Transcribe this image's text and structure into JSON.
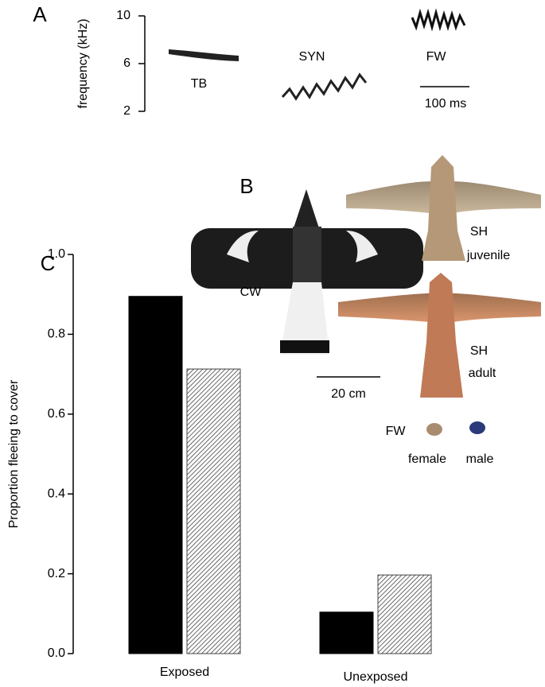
{
  "chart_data": {
    "type": "bar",
    "panel": "C",
    "ylabel": "Proportion fleeing to cover",
    "categories": [
      "Exposed",
      "Unexposed"
    ],
    "series": [
      {
        "color": "#000000",
        "values": [
          0.895,
          0.104
        ]
      },
      {
        "color": "#444444",
        "hatch": true,
        "values": [
          0.713,
          0.197
        ]
      }
    ],
    "ylim": [
      0,
      1.0
    ],
    "yticks": [
      {
        "value": 0,
        "label": "0.0"
      },
      {
        "value": 0.2,
        "label": "0.2"
      },
      {
        "value": 0.4,
        "label": "0.4"
      },
      {
        "value": 0.6,
        "label": "0.6"
      },
      {
        "value": 0.8,
        "label": "0.8"
      },
      {
        "value": 1.0,
        "label": "1.0"
      }
    ]
  },
  "panel_a": {
    "panel": "A",
    "ylabel": "frequency (kHz)",
    "ylim": [
      2,
      10
    ],
    "yticks": [
      10,
      6,
      2
    ],
    "labels": [
      "TB",
      "SYN",
      "FW"
    ],
    "scale": "100 ms"
  },
  "panel_b": {
    "panel": "B",
    "cw": "CW",
    "sh_juvenile": [
      "SH",
      "juvenile"
    ],
    "sh_adult": [
      "SH",
      "adult"
    ],
    "scale": "20 cm",
    "fw": "FW",
    "female": "female",
    "male": "male"
  }
}
